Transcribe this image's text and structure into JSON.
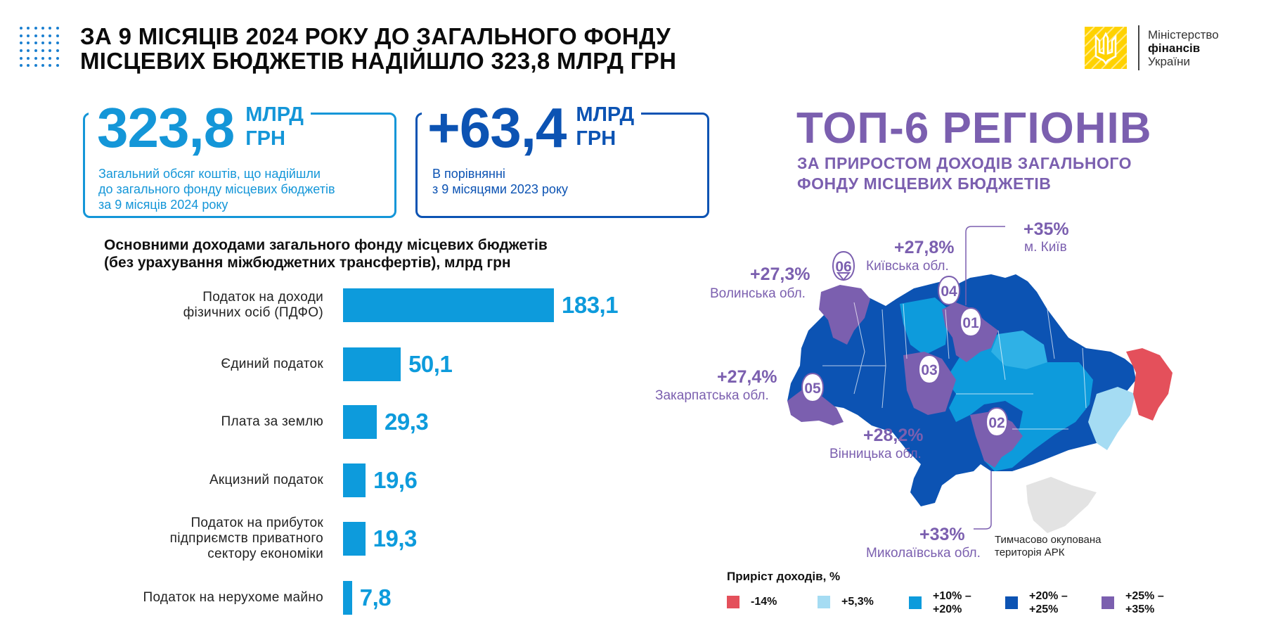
{
  "header": {
    "title_line1": "ЗА 9 МІСЯЦІВ 2024 РОКУ ДО ЗАГАЛЬНОГО ФОНДУ",
    "title_line2": "МІСЦЕВИХ БЮДЖЕТІВ НАДІЙШЛО 323,8 МЛРД ГРН"
  },
  "logo": {
    "line1": "Міністерство",
    "line2": "фінансів",
    "line3": "України"
  },
  "stat1": {
    "value": "323,8",
    "unit1": "МЛРД",
    "unit2": "ГРН",
    "desc1": "Загальний обсяг коштів, що надійшли",
    "desc2": "до загального фонду місцевих бюджетів",
    "desc3": "за 9 місяців 2024 року"
  },
  "stat2": {
    "value": "+63,4",
    "unit1": "МЛРД",
    "unit2": "ГРН",
    "desc1": "В порівнянні",
    "desc2": "з 9 місяцями 2023 року"
  },
  "chart_data": {
    "type": "bar",
    "title": "Основними доходами загального фонду місцевих бюджетів (без урахування міжбюджетних трансфертів), млрд грн",
    "title_line1": "Основними доходами загального фонду місцевих бюджетів",
    "title_line2": "(без урахування міжбюджетних трансфертів), млрд грн",
    "orientation": "horizontal",
    "categories": [
      [
        "Податок на доходи",
        "фізичних осіб (ПДФО)"
      ],
      [
        "Єдиний податок"
      ],
      [
        "Плата за землю"
      ],
      [
        "Акцизний податок"
      ],
      [
        "Податок на прибуток",
        "підприємств приватного",
        "сектору економіки"
      ],
      [
        "Податок на нерухоме майно"
      ]
    ],
    "values": [
      183.1,
      50.1,
      29.3,
      19.6,
      19.3,
      7.8
    ],
    "value_labels": [
      "183,1",
      "50,1",
      "29,3",
      "19,6",
      "19,3",
      "7,8"
    ],
    "color": "#0d9bdc"
  },
  "map": {
    "title": "ТОП-6 РЕГІОНІВ",
    "subtitle1": "ЗА ПРИРОСТОМ ДОХОДІВ ЗАГАЛЬНОГО",
    "subtitle2": "ФОНДУ МІСЦЕВИХ БЮДЖЕТІВ",
    "regions": [
      {
        "rank": "01",
        "pct": "+35%",
        "name": "м. Київ"
      },
      {
        "rank": "02",
        "pct": "+33%",
        "name": "Миколаївська обл."
      },
      {
        "rank": "03",
        "pct": "+28,2%",
        "name": "Вінницька обл."
      },
      {
        "rank": "04",
        "pct": "+27,8%",
        "name": "Київська обл."
      },
      {
        "rank": "05",
        "pct": "+27,4%",
        "name": "Закарпатська обл."
      },
      {
        "rank": "06",
        "pct": "+27,3%",
        "name": "Волинська обл."
      }
    ],
    "note1": "Тимчасово окупована",
    "note2": "територія АРК",
    "legend_title": "Приріст доходів, %",
    "legend": [
      {
        "line1": "-14%",
        "line2": "",
        "color": "#e4505b"
      },
      {
        "line1": "+5,3%",
        "line2": "",
        "color": "#a5dcf3"
      },
      {
        "line1": "+10% –",
        "line2": "+20%",
        "color": "#0d9bdc"
      },
      {
        "line1": "+20% –",
        "line2": "+25%",
        "color": "#0c53b3"
      },
      {
        "line1": "+25% –",
        "line2": "+35%",
        "color": "#7b5faf"
      }
    ]
  }
}
